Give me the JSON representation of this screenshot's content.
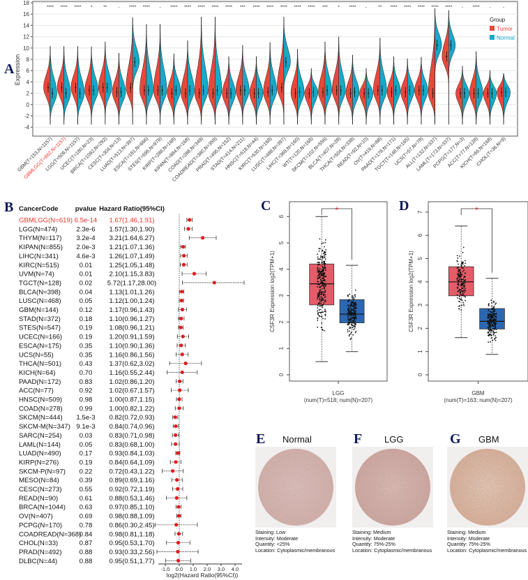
{
  "panel_labels": {
    "a": "A",
    "b": "B",
    "c": "C",
    "d": "D",
    "e": "E",
    "f": "F",
    "g": "G"
  },
  "colors": {
    "tumor": "#e8483a",
    "normal": "#16a9c9",
    "box_tumor": "#e45c68",
    "box_normal": "#2c67b1",
    "highlight": "#e8322a",
    "panel_label": "#0b1a5c"
  },
  "chart_data": [
    {
      "type": "violin",
      "panel": "A",
      "ylabel": "Expression",
      "ylim": [
        -4,
        18
      ],
      "yticks": [
        -4,
        -2,
        0,
        2,
        4,
        6,
        8,
        10,
        12,
        14,
        16,
        18
      ],
      "grid": true,
      "legend": {
        "title": "Group",
        "entries": [
          "Tumor",
          "Normal"
        ],
        "position": "top-right"
      },
      "highlight_index": 1,
      "categories": [
        "GBM(T=153,N=1157)",
        "GBMLGG(T=662,N=1157)",
        "LGG(T=509,N=1157)",
        "UCEC(T=180,N=23)",
        "BRCA(T=1092,N=292)",
        "CESC(T=304,N=13)",
        "LUAD(T=513,N=397)",
        "ESCA(T=181,N=666)",
        "STES(T=595,N=979)",
        "KIRP(T=288,N=168)",
        "KIPAN(T=884,N=168)",
        "COAD(T=288,N=349)",
        "COADREAD(T=380,N=359)",
        "PRAD(T=495,N=152)",
        "STAD(T=414,N=211)",
        "HNSC(T=518,N=44)",
        "KIRC(T=530,N=168)",
        "LUSC(T=498,N=397)",
        "LIHC(T=369,N=160)",
        "WT(T=120,N=168)",
        "SKCM(T=102,N=556)",
        "BLCA(T=407,N=28)",
        "THCA(T=504,N=338)",
        "READ(T=92,N=10)",
        "OV(T=419,N=88)",
        "PAAD(T=178,N=171)",
        "TGCT(T=148,N=165)",
        "UCS(T=57,N=78)",
        "ALL(T=132,N=337)",
        "LAML(T=173,N=337)",
        "PCPG(T=177,N=3)",
        "ACC(T=77,N=128)",
        "KICH(T=66,N=168)",
        "CHOL(T=36,N=9)"
      ],
      "significance": [
        "****",
        "****",
        "****",
        "*",
        "**",
        "-",
        "****",
        "****",
        "-",
        "****",
        "****",
        "****",
        "****",
        "****",
        "***",
        "****",
        "****",
        "****",
        "****",
        "****",
        "***",
        "*",
        "****",
        "-",
        "**",
        "****",
        "****",
        "****",
        "****",
        "****",
        "-",
        "****",
        "-",
        "-"
      ],
      "series": [
        {
          "name": "Tumor",
          "median": [
            3,
            3,
            3,
            2.5,
            3,
            2.2,
            3,
            2.5,
            2.5,
            2,
            2,
            2,
            2,
            2,
            2.5,
            2,
            2.2,
            3,
            2,
            2,
            2.2,
            2.5,
            2,
            2,
            2.5,
            2.2,
            2.2,
            2.5,
            2,
            8.5,
            2,
            2,
            2,
            2.2
          ]
        },
        {
          "name": "Normal",
          "median": [
            2,
            2,
            2,
            2.5,
            3,
            2.2,
            7.5,
            2.5,
            2.5,
            2.5,
            2.5,
            2.5,
            2.5,
            2,
            2.5,
            2,
            2.5,
            7.5,
            2.2,
            2.2,
            2.5,
            2.5,
            2.2,
            2,
            2.5,
            2.5,
            2.5,
            2.5,
            10.5,
            10.5,
            2,
            2,
            2,
            2.2
          ]
        }
      ],
      "max": [
        10.3,
        10.3,
        10.3,
        10.2,
        11.1,
        9.1,
        15.4,
        14.2,
        14.2,
        9,
        11.3,
        15.5,
        15.5,
        8.5,
        10.5,
        8.5,
        11,
        15.5,
        9.8,
        6.4,
        11.1,
        12,
        8.8,
        6.4,
        11.8,
        8.5,
        8.1,
        8.4,
        17,
        16.7,
        6.8,
        9.4,
        6,
        5.5
      ],
      "min": -3.5
    },
    {
      "type": "forest",
      "panel": "B",
      "headers": [
        "CancerCode",
        "pvalue",
        "Hazard Ratio(95%CI)"
      ],
      "xlabel": "log2(Hazard Ratio(95%CI))",
      "xticks": [
        "-1.0",
        "0.0",
        "1.0",
        "2.0",
        "3.0",
        "4.0"
      ],
      "xlim": [
        -1.5,
        4.5
      ],
      "highlight_index": 0,
      "rows": [
        {
          "code": "GBMLGG(N=619)",
          "p": "6.5e-14",
          "ci": "1.67(1.46,1.91)",
          "hr": 1.67,
          "lo": 1.46,
          "hi": 1.91
        },
        {
          "code": "LGG(N=474)",
          "p": "2.3e-6",
          "ci": "1.57(1.30,1.90)",
          "hr": 1.57,
          "lo": 1.3,
          "hi": 1.9
        },
        {
          "code": "THYM(N=117)",
          "p": "3.2e-4",
          "ci": "3.21(1.64,6.27)",
          "hr": 3.21,
          "lo": 1.64,
          "hi": 6.27
        },
        {
          "code": "KIPAN(N=855)",
          "p": "2.0e-3",
          "ci": "1.21(1.07,1.36)",
          "hr": 1.21,
          "lo": 1.07,
          "hi": 1.36
        },
        {
          "code": "LIHC(N=341)",
          "p": "4.6e-3",
          "ci": "1.26(1.07,1.49)",
          "hr": 1.26,
          "lo": 1.07,
          "hi": 1.49
        },
        {
          "code": "KIRC(N=515)",
          "p": "0.01",
          "ci": "1.25(1.05,1.48)",
          "hr": 1.25,
          "lo": 1.05,
          "hi": 1.48
        },
        {
          "code": "UVM(N=74)",
          "p": "0.01",
          "ci": "2.10(1.15,3.83)",
          "hr": 2.1,
          "lo": 1.15,
          "hi": 3.83
        },
        {
          "code": "TGCT(N=128)",
          "p": "0.02",
          "ci": "5.72(1.17,28.00)",
          "hr": 5.72,
          "lo": 1.17,
          "hi": 28.0
        },
        {
          "code": "BLCA(N=398)",
          "p": "0.04",
          "ci": "1.13(1.01,1.26)",
          "hr": 1.13,
          "lo": 1.01,
          "hi": 1.26
        },
        {
          "code": "LUSC(N=468)",
          "p": "0.05",
          "ci": "1.12(1.00,1.24)",
          "hr": 1.12,
          "lo": 1.0,
          "hi": 1.24
        },
        {
          "code": "GBM(N=144)",
          "p": "0.12",
          "ci": "1.17(0.96,1.43)",
          "hr": 1.17,
          "lo": 0.96,
          "hi": 1.43
        },
        {
          "code": "STAD(N=372)",
          "p": "0.18",
          "ci": "1.10(0.96,1.27)",
          "hr": 1.1,
          "lo": 0.96,
          "hi": 1.27
        },
        {
          "code": "STES(N=547)",
          "p": "0.19",
          "ci": "1.08(0.96,1.21)",
          "hr": 1.08,
          "lo": 0.96,
          "hi": 1.21
        },
        {
          "code": "UCEC(N=166)",
          "p": "0.19",
          "ci": "1.20(0.91,1.59)",
          "hr": 1.2,
          "lo": 0.91,
          "hi": 1.59
        },
        {
          "code": "ESCA(N=175)",
          "p": "0.35",
          "ci": "1.10(0.90,1.36)",
          "hr": 1.1,
          "lo": 0.9,
          "hi": 1.36
        },
        {
          "code": "UCS(N=55)",
          "p": "0.35",
          "ci": "1.16(0.86,1.56)",
          "hr": 1.16,
          "lo": 0.86,
          "hi": 1.56
        },
        {
          "code": "THCA(N=501)",
          "p": "0.43",
          "ci": "1.37(0.62,3.02)",
          "hr": 1.37,
          "lo": 0.62,
          "hi": 3.02
        },
        {
          "code": "KICH(N=64)",
          "p": "0.70",
          "ci": "1.16(0.55,2.44)",
          "hr": 1.16,
          "lo": 0.55,
          "hi": 2.44
        },
        {
          "code": "PAAD(N=172)",
          "p": "0.83",
          "ci": "1.02(0.86,1.20)",
          "hr": 1.02,
          "lo": 0.86,
          "hi": 1.2
        },
        {
          "code": "ACC(N=77)",
          "p": "0.92",
          "ci": "1.02(0.67,1.57)",
          "hr": 1.02,
          "lo": 0.67,
          "hi": 1.57
        },
        {
          "code": "HNSC(N=509)",
          "p": "0.98",
          "ci": "1.00(0.87,1.15)",
          "hr": 1.0,
          "lo": 0.87,
          "hi": 1.15
        },
        {
          "code": "COAD(N=278)",
          "p": "0.99",
          "ci": "1.00(0.82,1.22)",
          "hr": 1.0,
          "lo": 0.82,
          "hi": 1.22
        },
        {
          "code": "SKCM(N=444)",
          "p": "1.5e-3",
          "ci": "0.82(0.72,0.93)",
          "hr": 0.82,
          "lo": 0.72,
          "hi": 0.93
        },
        {
          "code": "SKCM-M(N=347)",
          "p": "9.1e-3",
          "ci": "0.84(0.74,0.96)",
          "hr": 0.84,
          "lo": 0.74,
          "hi": 0.96
        },
        {
          "code": "SARC(N=254)",
          "p": "0.03",
          "ci": "0.83(0.71,0.98)",
          "hr": 0.83,
          "lo": 0.71,
          "hi": 0.98
        },
        {
          "code": "LAML(N=144)",
          "p": "0.05",
          "ci": "0.83(0.68,1.00)",
          "hr": 0.83,
          "lo": 0.68,
          "hi": 1.0
        },
        {
          "code": "LUAD(N=490)",
          "p": "0.17",
          "ci": "0.93(0.84,1.03)",
          "hr": 0.93,
          "lo": 0.84,
          "hi": 1.03
        },
        {
          "code": "KIRP(N=276)",
          "p": "0.19",
          "ci": "0.84(0.64,1.09)",
          "hr": 0.84,
          "lo": 0.64,
          "hi": 1.09
        },
        {
          "code": "SKCM-P(N=97)",
          "p": "0.22",
          "ci": "0.72(0.43,1.22)",
          "hr": 0.72,
          "lo": 0.43,
          "hi": 1.22
        },
        {
          "code": "MESO(N=84)",
          "p": "0.39",
          "ci": "0.89(0.69,1.16)",
          "hr": 0.89,
          "lo": 0.69,
          "hi": 1.16
        },
        {
          "code": "CESC(N=273)",
          "p": "0.55",
          "ci": "0.92(0.72,1.19)",
          "hr": 0.92,
          "lo": 0.72,
          "hi": 1.19
        },
        {
          "code": "READ(N=90)",
          "p": "0.61",
          "ci": "0.88(0.53,1.46)",
          "hr": 0.88,
          "lo": 0.53,
          "hi": 1.46
        },
        {
          "code": "BRCA(N=1044)",
          "p": "0.63",
          "ci": "0.97(0.85,1.10)",
          "hr": 0.97,
          "lo": 0.85,
          "hi": 1.1
        },
        {
          "code": "OV(N=407)",
          "p": "0.69",
          "ci": "0.98(0.88,1.09)",
          "hr": 0.98,
          "lo": 0.88,
          "hi": 1.09
        },
        {
          "code": "PCPG(N=170)",
          "p": "0.78",
          "ci": "0.86(0.30,2.45)",
          "hr": 0.86,
          "lo": 0.3,
          "hi": 2.45
        },
        {
          "code": "COADREAD(N=368)",
          "p": "0.84",
          "ci": "0.98(0.81,1.18)",
          "hr": 0.98,
          "lo": 0.81,
          "hi": 1.18
        },
        {
          "code": "CHOL(N=33)",
          "p": "0.87",
          "ci": "0.95(0.53,1.70)",
          "hr": 0.95,
          "lo": 0.53,
          "hi": 1.7
        },
        {
          "code": "PRAD(N=492)",
          "p": "0.88",
          "ci": "0.93(0.33,2.56)",
          "hr": 0.93,
          "lo": 0.33,
          "hi": 2.56
        },
        {
          "code": "DLBC(N=44)",
          "p": "0.88",
          "ci": "0.95(0.51,1.77)",
          "hr": 0.95,
          "lo": 0.51,
          "hi": 1.77
        }
      ]
    },
    {
      "type": "box",
      "panel": "C",
      "ylabel": "CSF3R Expression log2(TPM+1)",
      "xlabel": "LGG",
      "xsublabel": "(num(T)=518; num(N)=207)",
      "ylim": [
        0,
        6
      ],
      "yticks": [
        "0",
        "1",
        "2",
        "3",
        "4",
        "5",
        "6"
      ],
      "significance": "*",
      "boxes": [
        {
          "group": "Tumor",
          "n": 518,
          "q1": 2.65,
          "median": 3.45,
          "q3": 4.2,
          "whisker_low": 0.5,
          "whisker_high": 6.0
        },
        {
          "group": "Normal",
          "n": 207,
          "q1": 1.97,
          "median": 2.3,
          "q3": 2.85,
          "whisker_low": 0.88,
          "whisker_high": 4.15
        }
      ]
    },
    {
      "type": "box",
      "panel": "D",
      "ylabel": "CSF3R Expression log2(TPM+1)",
      "xlabel": "GBM",
      "xsublabel": "(num(T)=163; num(N)=207)",
      "ylim": [
        0,
        7
      ],
      "yticks": [
        "0",
        "1",
        "2",
        "3",
        "4",
        "5",
        "6",
        "7"
      ],
      "significance": "*",
      "boxes": [
        {
          "group": "Tumor",
          "n": 163,
          "q1": 3.4,
          "median": 4.0,
          "q3": 4.65,
          "whisker_low": 1.6,
          "whisker_high": 6.4
        },
        {
          "group": "Normal",
          "n": 207,
          "q1": 1.97,
          "median": 2.3,
          "q3": 2.85,
          "whisker_low": 0.88,
          "whisker_high": 4.15
        }
      ]
    }
  ],
  "ihc": [
    {
      "title": "Normal",
      "staining": "Staining: Low",
      "intensity": "Intensity: Moderate",
      "quantity": "Quantity: <25%",
      "location": "Location: Cytoplasmic/membranous"
    },
    {
      "title": "LGG",
      "staining": "Staining: Medium",
      "intensity": "Intensity: Moderate",
      "quantity": "Quantity: 75%-25%",
      "location": "Location: Cytoplasmic/membranous"
    },
    {
      "title": "GBM",
      "staining": "Staining: Medium",
      "intensity": "Intensity: Moderate",
      "quantity": "Quantity: 75%-25%",
      "location": "Location: Cytoplasmic/membranous"
    }
  ]
}
